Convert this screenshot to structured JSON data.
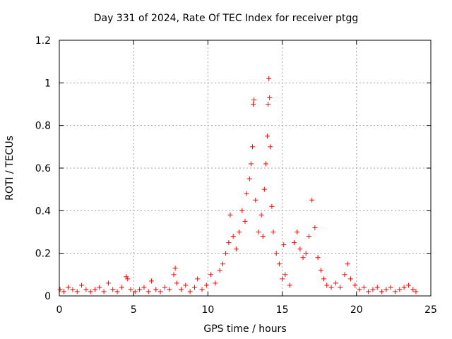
{
  "chart_data": {
    "type": "scatter",
    "title": "Day 331 of 2024, Rate Of TEC Index for receiver ptgg",
    "xlabel": "GPS time / hours",
    "ylabel": "ROTI / TECUs",
    "xlim": [
      0,
      25
    ],
    "ylim": [
      0,
      1.2
    ],
    "xticks": [
      0,
      5,
      10,
      15,
      20,
      25
    ],
    "xtick_labels": [
      "0",
      "5",
      "10",
      "15",
      "20",
      "25"
    ],
    "yticks": [
      0,
      0.2,
      0.4,
      0.6,
      0.8,
      1.0,
      1.2
    ],
    "ytick_labels": [
      "0",
      "0.2",
      "0.4",
      "0.6",
      "0.8",
      "1",
      "1.2"
    ],
    "grid": true,
    "marker": "+",
    "color": "#ff0000",
    "series": [
      {
        "name": "ROTI",
        "points": [
          [
            0.05,
            0.03
          ],
          [
            0.3,
            0.02
          ],
          [
            0.6,
            0.04
          ],
          [
            0.9,
            0.03
          ],
          [
            1.2,
            0.02
          ],
          [
            1.5,
            0.05
          ],
          [
            1.8,
            0.03
          ],
          [
            2.1,
            0.02
          ],
          [
            2.4,
            0.03
          ],
          [
            2.7,
            0.04
          ],
          [
            3.0,
            0.02
          ],
          [
            3.3,
            0.06
          ],
          [
            3.6,
            0.03
          ],
          [
            3.9,
            0.02
          ],
          [
            4.2,
            0.04
          ],
          [
            4.5,
            0.09
          ],
          [
            4.6,
            0.08
          ],
          [
            4.8,
            0.03
          ],
          [
            5.1,
            0.02
          ],
          [
            5.4,
            0.03
          ],
          [
            5.7,
            0.04
          ],
          [
            6.0,
            0.02
          ],
          [
            6.2,
            0.07
          ],
          [
            6.5,
            0.03
          ],
          [
            6.8,
            0.02
          ],
          [
            7.1,
            0.04
          ],
          [
            7.4,
            0.03
          ],
          [
            7.7,
            0.1
          ],
          [
            7.8,
            0.13
          ],
          [
            7.9,
            0.06
          ],
          [
            8.2,
            0.03
          ],
          [
            8.5,
            0.05
          ],
          [
            8.8,
            0.02
          ],
          [
            9.1,
            0.04
          ],
          [
            9.3,
            0.08
          ],
          [
            9.6,
            0.03
          ],
          [
            9.9,
            0.05
          ],
          [
            10.2,
            0.1
          ],
          [
            10.5,
            0.06
          ],
          [
            10.8,
            0.12
          ],
          [
            11.0,
            0.15
          ],
          [
            11.2,
            0.2
          ],
          [
            11.4,
            0.25
          ],
          [
            11.5,
            0.38
          ],
          [
            11.7,
            0.28
          ],
          [
            11.9,
            0.22
          ],
          [
            12.1,
            0.3
          ],
          [
            12.3,
            0.4
          ],
          [
            12.5,
            0.35
          ],
          [
            12.6,
            0.48
          ],
          [
            12.8,
            0.55
          ],
          [
            12.9,
            0.62
          ],
          [
            13.0,
            0.7
          ],
          [
            13.05,
            0.9
          ],
          [
            13.1,
            0.92
          ],
          [
            13.2,
            0.45
          ],
          [
            13.4,
            0.3
          ],
          [
            13.6,
            0.38
          ],
          [
            13.7,
            0.28
          ],
          [
            13.8,
            0.5
          ],
          [
            13.9,
            0.62
          ],
          [
            14.0,
            0.75
          ],
          [
            14.05,
            0.9
          ],
          [
            14.1,
            1.02
          ],
          [
            14.15,
            0.93
          ],
          [
            14.2,
            0.7
          ],
          [
            14.3,
            0.42
          ],
          [
            14.4,
            0.3
          ],
          [
            14.6,
            0.2
          ],
          [
            14.8,
            0.15
          ],
          [
            15.0,
            0.08
          ],
          [
            15.1,
            0.24
          ],
          [
            15.2,
            0.1
          ],
          [
            15.5,
            0.05
          ],
          [
            15.8,
            0.25
          ],
          [
            16.0,
            0.3
          ],
          [
            16.2,
            0.22
          ],
          [
            16.4,
            0.18
          ],
          [
            16.6,
            0.2
          ],
          [
            16.8,
            0.28
          ],
          [
            17.0,
            0.45
          ],
          [
            17.2,
            0.32
          ],
          [
            17.4,
            0.18
          ],
          [
            17.6,
            0.12
          ],
          [
            17.8,
            0.08
          ],
          [
            18.0,
            0.05
          ],
          [
            18.3,
            0.04
          ],
          [
            18.6,
            0.06
          ],
          [
            18.9,
            0.04
          ],
          [
            19.2,
            0.1
          ],
          [
            19.4,
            0.15
          ],
          [
            19.6,
            0.08
          ],
          [
            19.9,
            0.05
          ],
          [
            20.2,
            0.03
          ],
          [
            20.5,
            0.04
          ],
          [
            20.8,
            0.02
          ],
          [
            21.1,
            0.03
          ],
          [
            21.4,
            0.04
          ],
          [
            21.7,
            0.02
          ],
          [
            22.0,
            0.03
          ],
          [
            22.3,
            0.04
          ],
          [
            22.6,
            0.02
          ],
          [
            22.9,
            0.03
          ],
          [
            23.2,
            0.04
          ],
          [
            23.5,
            0.05
          ],
          [
            23.8,
            0.03
          ],
          [
            24.0,
            0.02
          ]
        ]
      }
    ]
  }
}
